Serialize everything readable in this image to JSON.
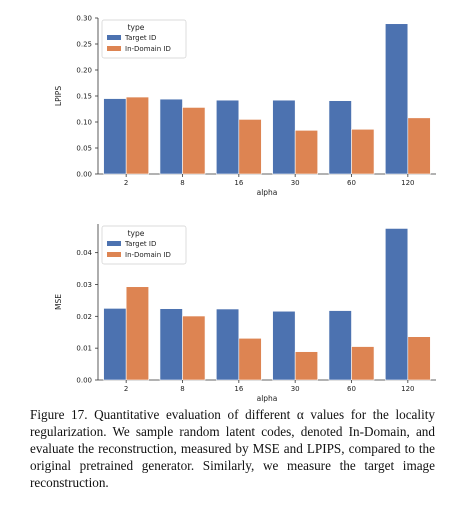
{
  "chart_data": [
    {
      "type": "bar",
      "categories": [
        "2",
        "8",
        "16",
        "30",
        "60",
        "120"
      ],
      "xlabel": "alpha",
      "ylabel": "LPIPS",
      "ylim": [
        0,
        0.3
      ],
      "yticks": [
        "0.00",
        "0.05",
        "0.10",
        "0.15",
        "0.20",
        "0.25",
        "0.30"
      ],
      "ytick_values": [
        0,
        0.05,
        0.1,
        0.15,
        0.2,
        0.25,
        0.3
      ],
      "legend_title": "type",
      "legend_position": "top-left",
      "series": [
        {
          "name": "Target ID",
          "color": "#4c72b0",
          "values": [
            0.145,
            0.144,
            0.142,
            0.142,
            0.141,
            0.289
          ]
        },
        {
          "name": "In-Domain ID",
          "color": "#dd8452",
          "values": [
            0.148,
            0.128,
            0.105,
            0.084,
            0.086,
            0.108
          ]
        }
      ]
    },
    {
      "type": "bar",
      "categories": [
        "2",
        "8",
        "16",
        "30",
        "60",
        "120"
      ],
      "xlabel": "alpha",
      "ylabel": "MSE",
      "ylim": [
        0,
        0.049
      ],
      "yticks": [
        "0.00",
        "0.01",
        "0.02",
        "0.03",
        "0.04"
      ],
      "ytick_values": [
        0,
        0.01,
        0.02,
        0.03,
        0.04
      ],
      "legend_title": "type",
      "legend_position": "top-left",
      "series": [
        {
          "name": "Target ID",
          "color": "#4c72b0",
          "values": [
            0.0225,
            0.0224,
            0.0223,
            0.0216,
            0.0218,
            0.0476
          ]
        },
        {
          "name": "In-Domain ID",
          "color": "#dd8452",
          "values": [
            0.0293,
            0.0201,
            0.0131,
            0.0089,
            0.0105,
            0.0136
          ]
        }
      ]
    }
  ],
  "caption": "Figure 17. Quantitative evaluation of different α values for the locality regularization. We sample random latent codes, denoted In-Domain, and evaluate the reconstruction, measured by MSE and LPIPS, compared to the original pretrained generator. Similarly, we measure the target image reconstruction."
}
